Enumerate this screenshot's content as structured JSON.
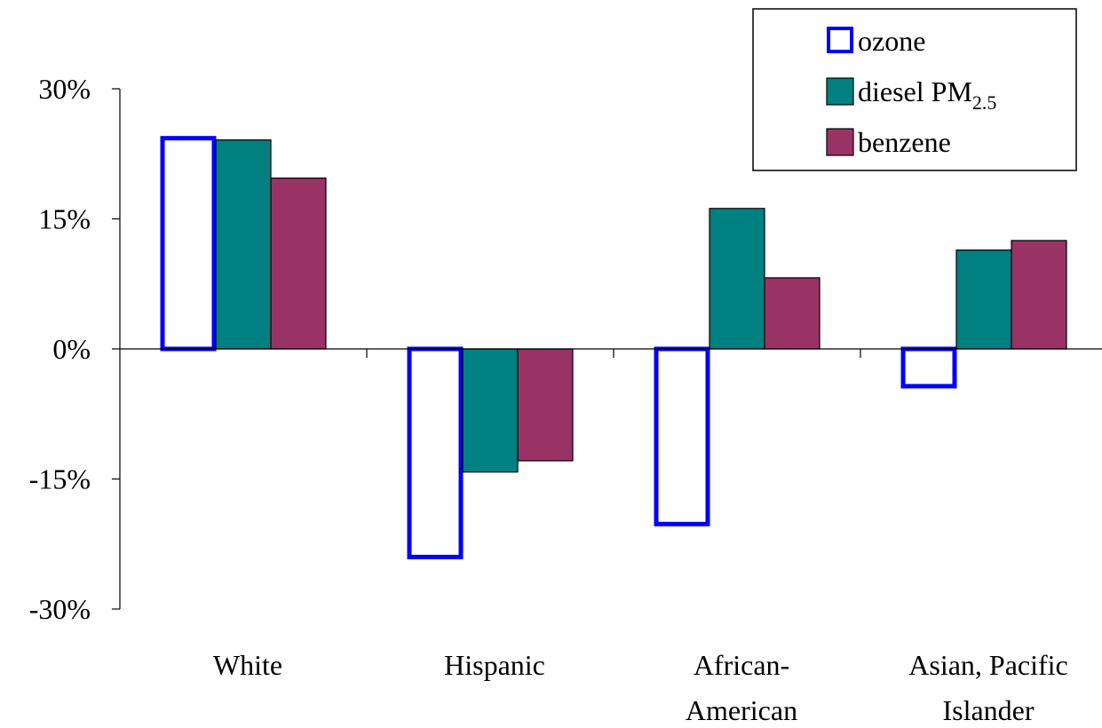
{
  "chart_data": {
    "type": "bar",
    "categories": [
      [
        "White"
      ],
      [
        "Hispanic"
      ],
      [
        "African-",
        "American"
      ],
      [
        "Asian, Pacific",
        "Islander"
      ]
    ],
    "series": [
      {
        "name": "ozone",
        "name_sub": "",
        "style": "outline",
        "color": "#0000ff",
        "values": [
          24.3,
          -24.0,
          -20.2,
          -4.3
        ]
      },
      {
        "name": "diesel PM",
        "name_sub": "2.5",
        "style": "fill",
        "color": "#008080",
        "values": [
          24.1,
          -14.2,
          16.2,
          11.4
        ]
      },
      {
        "name": "benzene",
        "name_sub": "",
        "style": "fill",
        "color": "#993366",
        "values": [
          19.7,
          -12.9,
          8.2,
          12.5
        ]
      }
    ],
    "yticks": [
      "30%",
      "15%",
      "0%",
      "-15%",
      "-30%"
    ],
    "ytick_values": [
      30,
      15,
      0,
      -15,
      -30
    ],
    "ylim": [
      -30,
      30
    ],
    "legend_position": "top-right",
    "grid": false
  }
}
